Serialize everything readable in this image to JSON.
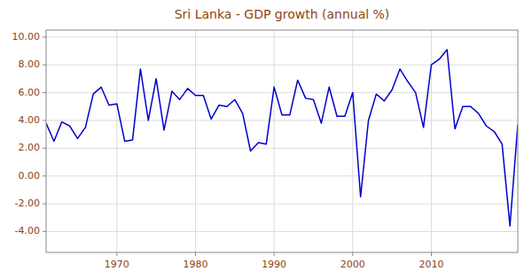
{
  "chart_data": {
    "type": "line",
    "title": "Sri Lanka - GDP growth (annual %)",
    "x": [
      1961,
      1962,
      1963,
      1964,
      1965,
      1966,
      1967,
      1968,
      1969,
      1970,
      1971,
      1972,
      1973,
      1974,
      1975,
      1976,
      1977,
      1978,
      1979,
      1980,
      1981,
      1982,
      1983,
      1984,
      1985,
      1986,
      1987,
      1988,
      1989,
      1990,
      1991,
      1992,
      1993,
      1994,
      1995,
      1996,
      1997,
      1998,
      1999,
      2000,
      2001,
      2002,
      2003,
      2004,
      2005,
      2006,
      2007,
      2008,
      2009,
      2010,
      2011,
      2012,
      2013,
      2014,
      2015,
      2016,
      2017,
      2018,
      2019,
      2020,
      2021
    ],
    "values": [
      3.8,
      2.5,
      3.9,
      3.6,
      2.7,
      3.5,
      5.9,
      6.4,
      5.1,
      5.2,
      2.5,
      2.6,
      7.7,
      4.0,
      7.0,
      3.3,
      6.1,
      5.5,
      6.3,
      5.8,
      5.8,
      4.1,
      5.1,
      5.0,
      5.5,
      4.5,
      1.8,
      2.4,
      2.3,
      6.4,
      4.4,
      4.4,
      6.9,
      5.6,
      5.5,
      3.8,
      6.4,
      4.3,
      4.3,
      6.0,
      -1.5,
      4.0,
      5.9,
      5.4,
      6.2,
      7.7,
      6.8,
      6.0,
      3.5,
      8.0,
      8.4,
      9.1,
      3.4,
      5.0,
      5.0,
      4.5,
      3.6,
      3.2,
      2.3,
      -3.6,
      3.7
    ],
    "color": "#0000CD",
    "xlim": [
      1961,
      2021
    ],
    "xticks": [
      1970,
      1980,
      1990,
      2000,
      2010
    ],
    "ylim": [
      -5.5,
      10.5
    ],
    "yticks": [
      {
        "value": -4.0,
        "label": "-4.00"
      },
      {
        "value": -2.0,
        "label": "-2.00"
      },
      {
        "value": 0.0,
        "label": "0.00"
      },
      {
        "value": 2.0,
        "label": "2.00"
      },
      {
        "value": 4.0,
        "label": "4.00"
      },
      {
        "value": 6.0,
        "label": "6.00"
      },
      {
        "value": 8.0,
        "label": "8.00"
      },
      {
        "value": 10.0,
        "label": "10.00"
      }
    ],
    "grid": true
  }
}
